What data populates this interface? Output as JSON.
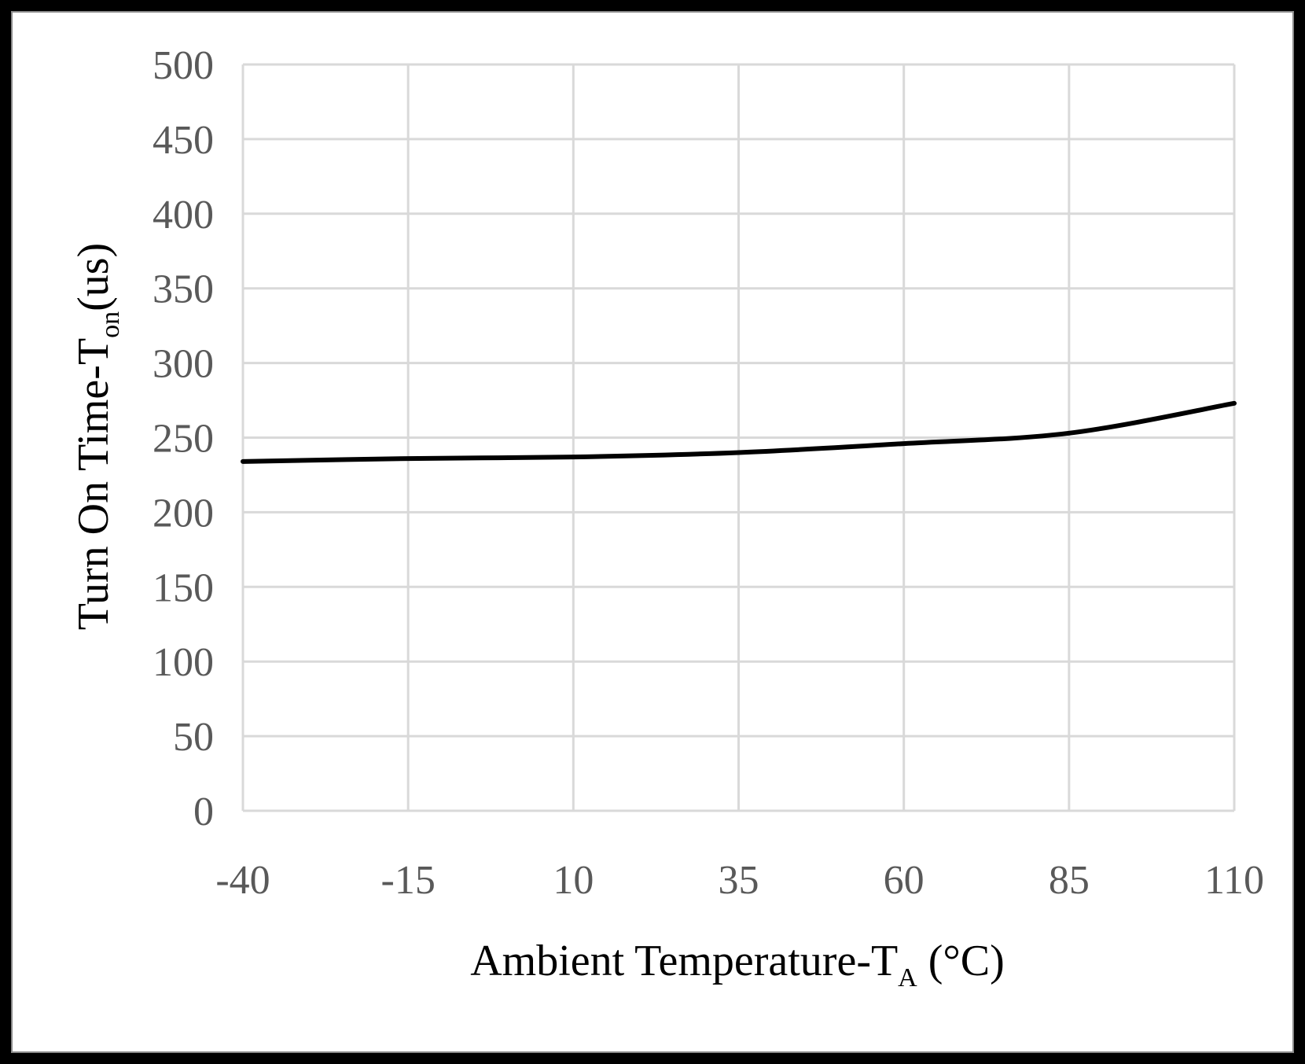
{
  "chart_data": {
    "type": "line",
    "title": "",
    "xlabel": {
      "main": "Ambient Temperature-T",
      "sub": "A",
      "suffix": " (°C)"
    },
    "ylabel": {
      "main": "Turn On Time-T",
      "sub": "on",
      "suffix": "(us)"
    },
    "x_ticks": [
      "-40",
      "-15",
      "10",
      "35",
      "60",
      "85",
      "110"
    ],
    "y_ticks": [
      "0",
      "50",
      "100",
      "150",
      "200",
      "250",
      "300",
      "350",
      "400",
      "450",
      "500"
    ],
    "xlim": [
      -40,
      110
    ],
    "ylim": [
      0,
      500
    ],
    "grid": true,
    "series": [
      {
        "name": "Turn On Time",
        "color": "#000000",
        "x": [
          -40,
          -15,
          10,
          35,
          60,
          85,
          110
        ],
        "y": [
          234,
          236,
          237,
          240,
          246,
          253,
          273
        ]
      }
    ]
  },
  "colors": {
    "grid": "#d9d9d9",
    "line": "#000000",
    "tick_text": "#595959",
    "background": "#ffffff",
    "outer_border": "#000000"
  }
}
